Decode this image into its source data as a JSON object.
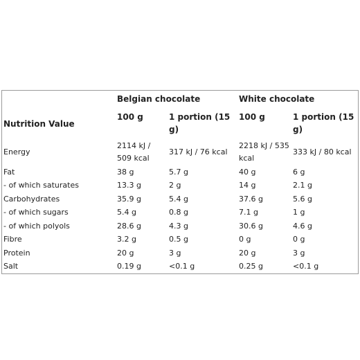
{
  "table": {
    "groups": [
      "Belgian chocolate",
      "White chocolate"
    ],
    "columns": [
      "Nutrition Value",
      "100 g",
      "1 portion (15 g)",
      "100 g",
      "1 portion (15 g)"
    ],
    "rows": [
      [
        "Energy",
        "2114 kJ / 509 kcal",
        "317 kJ / 76 kcal",
        "2218 kJ / 535 kcal",
        "333 kJ / 80 kcal"
      ],
      [
        "Fat",
        "38 g",
        "5.7 g",
        "40 g",
        "6 g"
      ],
      [
        "- of which saturates",
        "13.3 g",
        "2 g",
        "14 g",
        "2.1 g"
      ],
      [
        "Carbohydrates",
        "35.9 g",
        "5.4 g",
        "37.6 g",
        "5.6 g"
      ],
      [
        "- of which sugars",
        "5.4 g",
        "0.8 g",
        "7.1 g",
        "1 g"
      ],
      [
        "- of which polyols",
        "28.6 g",
        "4.3 g",
        "30.6 g",
        "4.6 g"
      ],
      [
        "Fibre",
        "3.2 g",
        "0.5 g",
        "0 g",
        "0 g"
      ],
      [
        "Protein",
        "20 g",
        "3 g",
        "20 g",
        "3 g"
      ],
      [
        "Salt",
        "0.19 g",
        "<0.1 g",
        "0.25 g",
        "<0.1 g"
      ]
    ]
  }
}
